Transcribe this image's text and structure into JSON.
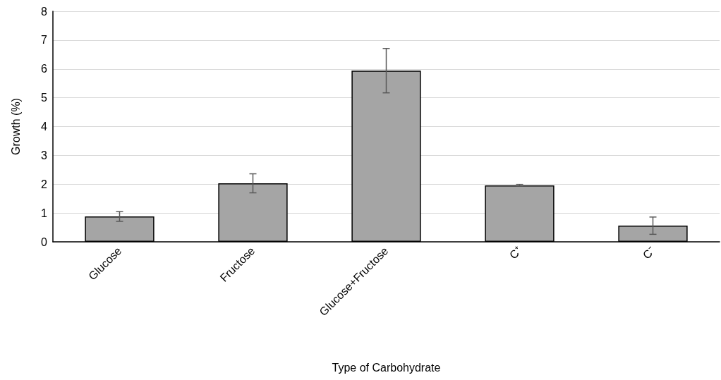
{
  "chart_data": {
    "type": "bar",
    "xlabel": "Type of Carbohydrate",
    "ylabel": "Growth (%)",
    "categories": [
      "Glucose",
      "Fructose",
      "Glucose+Fructose",
      "C⁺",
      "C⁻"
    ],
    "values": [
      0.88,
      2.03,
      5.94,
      1.96,
      0.56
    ],
    "errors": [
      0.17,
      0.33,
      0.77,
      0.03,
      0.3
    ],
    "color": "#a5a5a5",
    "ylim": [
      0,
      8
    ],
    "yticks": [
      0,
      1,
      2,
      3,
      4,
      5,
      6,
      7,
      8
    ],
    "grid": "y"
  }
}
